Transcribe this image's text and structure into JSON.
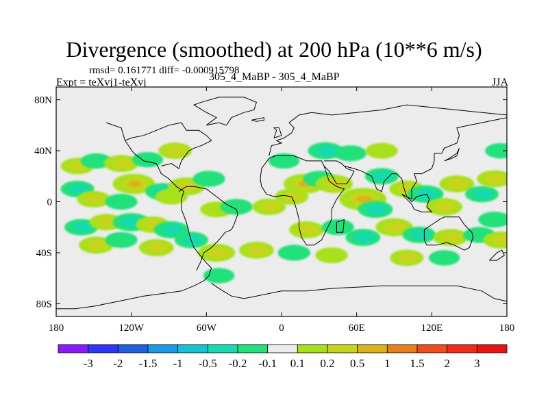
{
  "title": "Divergence (smoothed) at 200 hPa (10**6 m/s)",
  "stats_text": "rmsd= 0.161771  diff= -0.000915798",
  "expt_text": "Expt = teXvj1-teXvj",
  "case_text": "305_4_MaBP - 305_4_MaBP",
  "season": "JJA",
  "chart_data": {
    "type": "contour map",
    "title": "Divergence (smoothed) at 200 hPa (10**6 m/s)",
    "variable": "Divergence (smoothed)",
    "level": "200 hPa",
    "units": "10**6 m/s",
    "season": "JJA",
    "rmsd": 0.161771,
    "diff": -0.000915798,
    "xlim": [
      -180,
      180
    ],
    "ylim": [
      -90,
      90
    ],
    "xticks": [
      -180,
      -120,
      -60,
      0,
      60,
      120,
      180
    ],
    "xtick_labels": [
      "180",
      "120W",
      "60W",
      "0",
      "60E",
      "120E",
      "180"
    ],
    "yticks": [
      80,
      40,
      0,
      -40,
      -80
    ],
    "ytick_labels": [
      "80N",
      "40N",
      "0",
      "40S",
      "80S"
    ],
    "colorbar": {
      "levels": [
        -3,
        -2,
        -1.5,
        -1,
        -0.5,
        -0.2,
        -0.1,
        0.1,
        0.2,
        0.5,
        1,
        1.5,
        2,
        3
      ],
      "labels": [
        "-3",
        "-2",
        "-1.5",
        "-1",
        "-0.5",
        "-0.2",
        "-0.1",
        "0.1",
        "0.2",
        "0.5",
        "1",
        "1.5",
        "2",
        "3"
      ],
      "colors": [
        "#8c1aff",
        "#3333ff",
        "#1f5fe0",
        "#1a9be6",
        "#17c2d6",
        "#19d9b0",
        "#22e07a",
        "#ececec",
        "#a8e01c",
        "#c8d41c",
        "#dcb11a",
        "#e6801a",
        "#ef4d1a",
        "#f22a1a",
        "#e81414"
      ]
    },
    "field_blobs": [
      {
        "lon": -163,
        "lat": 28,
        "value": 0.25
      },
      {
        "lon": -148,
        "lat": 32,
        "value": -0.15
      },
      {
        "lon": -128,
        "lat": 30,
        "value": 0.3
      },
      {
        "lon": -107,
        "lat": 33,
        "value": -0.15
      },
      {
        "lon": -85,
        "lat": 40,
        "value": 0.25
      },
      {
        "lon": -163,
        "lat": 10,
        "value": -0.25
      },
      {
        "lon": -118,
        "lat": 14,
        "value": 0.6
      },
      {
        "lon": -95,
        "lat": 8,
        "value": -0.3
      },
      {
        "lon": -76,
        "lat": 12,
        "value": 0.4
      },
      {
        "lon": -150,
        "lat": 2,
        "value": 0.25
      },
      {
        "lon": -128,
        "lat": 0,
        "value": -0.2
      },
      {
        "lon": -88,
        "lat": 4,
        "value": 0.2
      },
      {
        "lon": -58,
        "lat": 18,
        "value": -0.2
      },
      {
        "lon": -52,
        "lat": -6,
        "value": 0.2
      },
      {
        "lon": -36,
        "lat": -4,
        "value": -0.2
      },
      {
        "lon": -160,
        "lat": -20,
        "value": -0.25
      },
      {
        "lon": -140,
        "lat": -16,
        "value": 0.25
      },
      {
        "lon": -120,
        "lat": -16,
        "value": -0.4
      },
      {
        "lon": -103,
        "lat": -18,
        "value": 0.25
      },
      {
        "lon": -88,
        "lat": -22,
        "value": -0.3
      },
      {
        "lon": -148,
        "lat": -34,
        "value": 0.3
      },
      {
        "lon": -128,
        "lat": -30,
        "value": -0.2
      },
      {
        "lon": -100,
        "lat": -36,
        "value": 0.3
      },
      {
        "lon": -72,
        "lat": -30,
        "value": -0.25
      },
      {
        "lon": -52,
        "lat": -40,
        "value": 0.4
      },
      {
        "lon": -20,
        "lat": -38,
        "value": 0.3
      },
      {
        "lon": -50,
        "lat": -58,
        "value": -0.15
      },
      {
        "lon": -10,
        "lat": -4,
        "value": 0.25
      },
      {
        "lon": 8,
        "lat": 4,
        "value": 0.25
      },
      {
        "lon": 2,
        "lat": 32,
        "value": -0.15
      },
      {
        "lon": 18,
        "lat": 14,
        "value": 0.55
      },
      {
        "lon": 30,
        "lat": 18,
        "value": -0.2
      },
      {
        "lon": 42,
        "lat": 14,
        "value": 0.4
      },
      {
        "lon": 55,
        "lat": 38,
        "value": -0.2
      },
      {
        "lon": 80,
        "lat": 20,
        "value": -0.25
      },
      {
        "lon": 80,
        "lat": 40,
        "value": 0.2
      },
      {
        "lon": 100,
        "lat": 10,
        "value": 0.3
      },
      {
        "lon": 115,
        "lat": 6,
        "value": -0.35
      },
      {
        "lon": 140,
        "lat": 14,
        "value": 0.3
      },
      {
        "lon": 160,
        "lat": 6,
        "value": -0.25
      },
      {
        "lon": 65,
        "lat": 2,
        "value": 0.8
      },
      {
        "lon": 75,
        "lat": -6,
        "value": -0.3
      },
      {
        "lon": 130,
        "lat": -4,
        "value": 0.35
      },
      {
        "lon": 170,
        "lat": 18,
        "value": 0.3
      },
      {
        "lon": 170,
        "lat": -14,
        "value": -0.2
      },
      {
        "lon": 20,
        "lat": -22,
        "value": 0.3
      },
      {
        "lon": 45,
        "lat": -20,
        "value": -0.2
      },
      {
        "lon": 65,
        "lat": -28,
        "value": -0.3
      },
      {
        "lon": 90,
        "lat": -20,
        "value": 0.4
      },
      {
        "lon": 110,
        "lat": -26,
        "value": -0.25
      },
      {
        "lon": 135,
        "lat": -28,
        "value": 0.3
      },
      {
        "lon": 158,
        "lat": -26,
        "value": -0.2
      },
      {
        "lon": 175,
        "lat": -30,
        "value": 0.3
      },
      {
        "lon": 100,
        "lat": -44,
        "value": 0.25
      },
      {
        "lon": 130,
        "lat": -44,
        "value": -0.15
      },
      {
        "lon": 40,
        "lat": -42,
        "value": 0.2
      },
      {
        "lon": 10,
        "lat": -40,
        "value": -0.2
      },
      {
        "lon": 175,
        "lat": 40,
        "value": -0.15
      },
      {
        "lon": 35,
        "lat": 40,
        "value": -0.3
      }
    ],
    "coastlines": [
      [
        [
          -180,
          -84
        ],
        [
          -165,
          -84
        ],
        [
          -150,
          -82
        ],
        [
          -130,
          -78
        ],
        [
          -110,
          -74
        ],
        [
          -95,
          -72
        ],
        [
          -80,
          -70
        ],
        [
          -70,
          -66
        ],
        [
          -62,
          -62
        ],
        [
          -58,
          -58
        ],
        [
          -56,
          -52
        ],
        [
          -60,
          -48
        ],
        [
          -65,
          -42
        ],
        [
          -70,
          -36
        ],
        [
          -73,
          -28
        ],
        [
          -76,
          -16
        ],
        [
          -80,
          -6
        ],
        [
          -80,
          2
        ],
        [
          -78,
          8
        ],
        [
          -84,
          12
        ],
        [
          -90,
          18
        ],
        [
          -96,
          22
        ],
        [
          -100,
          30
        ],
        [
          -110,
          32
        ],
        [
          -118,
          38
        ],
        [
          -125,
          48
        ],
        [
          -128,
          58
        ],
        [
          -140,
          62
        ]
      ],
      [
        [
          -82,
          8
        ],
        [
          -76,
          12
        ],
        [
          -70,
          12
        ],
        [
          -60,
          10
        ],
        [
          -52,
          4
        ],
        [
          -44,
          -2
        ],
        [
          -36,
          -6
        ],
        [
          -35,
          -10
        ],
        [
          -38,
          -18
        ],
        [
          -40,
          -22
        ],
        [
          -45,
          -24
        ],
        [
          -50,
          -30
        ],
        [
          -56,
          -36
        ],
        [
          -62,
          -40
        ],
        [
          -65,
          -48
        ],
        [
          -68,
          -54
        ]
      ],
      [
        [
          -56,
          -64
        ],
        [
          -50,
          -68
        ],
        [
          -40,
          -74
        ],
        [
          -30,
          -76
        ],
        [
          -20,
          -74
        ],
        [
          -10,
          -72
        ],
        [
          0,
          -70
        ],
        [
          20,
          -70
        ],
        [
          40,
          -68
        ],
        [
          60,
          -67
        ],
        [
          80,
          -66
        ],
        [
          100,
          -66
        ],
        [
          120,
          -66
        ],
        [
          140,
          -66
        ],
        [
          160,
          -70
        ],
        [
          170,
          -76
        ],
        [
          180,
          -78
        ]
      ],
      [
        [
          -180,
          -90
        ],
        [
          180,
          -90
        ]
      ],
      [
        [
          -5,
          36
        ],
        [
          -10,
          34
        ],
        [
          -16,
          26
        ],
        [
          -17,
          18
        ],
        [
          -16,
          12
        ],
        [
          -12,
          6
        ],
        [
          -6,
          4
        ],
        [
          2,
          5
        ],
        [
          8,
          4
        ],
        [
          10,
          0
        ],
        [
          12,
          -6
        ],
        [
          14,
          -14
        ],
        [
          14,
          -20
        ],
        [
          16,
          -28
        ],
        [
          20,
          -34
        ],
        [
          26,
          -34
        ],
        [
          32,
          -30
        ],
        [
          36,
          -22
        ],
        [
          40,
          -14
        ],
        [
          40,
          -6
        ],
        [
          44,
          2
        ],
        [
          50,
          10
        ],
        [
          44,
          12
        ],
        [
          38,
          16
        ],
        [
          34,
          28
        ],
        [
          32,
          32
        ],
        [
          20,
          32
        ],
        [
          10,
          36
        ],
        [
          0,
          36
        ],
        [
          -5,
          36
        ]
      ],
      [
        [
          44,
          -16
        ],
        [
          50,
          -14
        ],
        [
          49,
          -24
        ],
        [
          44,
          -24
        ],
        [
          44,
          -16
        ]
      ],
      [
        [
          34,
          28
        ],
        [
          38,
          24
        ],
        [
          44,
          14
        ],
        [
          52,
          14
        ],
        [
          56,
          20
        ],
        [
          58,
          24
        ],
        [
          52,
          26
        ],
        [
          48,
          30
        ],
        [
          44,
          32
        ],
        [
          34,
          32
        ]
      ],
      [
        [
          50,
          28
        ],
        [
          58,
          26
        ],
        [
          64,
          24
        ],
        [
          72,
          20
        ],
        [
          76,
          10
        ],
        [
          80,
          8
        ],
        [
          82,
          16
        ],
        [
          88,
          22
        ],
        [
          92,
          22
        ],
        [
          96,
          18
        ],
        [
          98,
          10
        ],
        [
          100,
          4
        ],
        [
          104,
          2
        ],
        [
          104,
          10
        ],
        [
          108,
          16
        ],
        [
          106,
          22
        ],
        [
          112,
          22
        ],
        [
          120,
          26
        ],
        [
          122,
          32
        ],
        [
          122,
          38
        ],
        [
          128,
          38
        ],
        [
          130,
          42
        ],
        [
          140,
          46
        ],
        [
          142,
          52
        ],
        [
          140,
          58
        ],
        [
          150,
          60
        ],
        [
          160,
          62
        ],
        [
          170,
          64
        ],
        [
          180,
          66
        ]
      ],
      [
        [
          -10,
          36
        ],
        [
          -8,
          44
        ],
        [
          0,
          46
        ],
        [
          -4,
          48
        ],
        [
          2,
          50
        ],
        [
          8,
          54
        ],
        [
          10,
          58
        ],
        [
          6,
          62
        ],
        [
          14,
          68
        ],
        [
          24,
          70
        ],
        [
          40,
          68
        ],
        [
          60,
          70
        ],
        [
          80,
          72
        ],
        [
          100,
          76
        ],
        [
          120,
          74
        ],
        [
          140,
          72
        ],
        [
          160,
          70
        ],
        [
          180,
          68
        ]
      ],
      [
        [
          114,
          -22
        ],
        [
          114,
          -30
        ],
        [
          116,
          -34
        ],
        [
          124,
          -34
        ],
        [
          132,
          -32
        ],
        [
          138,
          -34
        ],
        [
          146,
          -38
        ],
        [
          150,
          -36
        ],
        [
          153,
          -28
        ],
        [
          152,
          -24
        ],
        [
          146,
          -18
        ],
        [
          142,
          -12
        ],
        [
          136,
          -12
        ],
        [
          130,
          -12
        ],
        [
          126,
          -14
        ],
        [
          120,
          -18
        ],
        [
          114,
          -22
        ]
      ],
      [
        [
          96,
          6
        ],
        [
          100,
          2
        ],
        [
          104,
          -2
        ],
        [
          106,
          -6
        ],
        [
          112,
          -8
        ],
        [
          120,
          -8
        ],
        [
          116,
          -4
        ],
        [
          118,
          2
        ],
        [
          116,
          6
        ],
        [
          108,
          4
        ],
        [
          104,
          0
        ],
        [
          100,
          4
        ],
        [
          96,
          6
        ]
      ],
      [
        [
          130,
          32
        ],
        [
          134,
          34
        ],
        [
          140,
          38
        ],
        [
          142,
          42
        ],
        [
          140,
          36
        ],
        [
          136,
          34
        ],
        [
          130,
          32
        ]
      ],
      [
        [
          166,
          -46
        ],
        [
          172,
          -40
        ],
        [
          176,
          -38
        ],
        [
          178,
          -42
        ],
        [
          172,
          -46
        ],
        [
          166,
          -46
        ]
      ],
      [
        [
          -125,
          48
        ],
        [
          -120,
          50
        ],
        [
          -110,
          52
        ],
        [
          -100,
          56
        ],
        [
          -90,
          60
        ],
        [
          -80,
          62
        ],
        [
          -76,
          56
        ],
        [
          -66,
          56
        ],
        [
          -60,
          52
        ],
        [
          -56,
          48
        ],
        [
          -64,
          44
        ],
        [
          -70,
          42
        ],
        [
          -74,
          40
        ],
        [
          -80,
          32
        ],
        [
          -82,
          26
        ],
        [
          -88,
          30
        ],
        [
          -96,
          28
        ]
      ],
      [
        [
          -60,
          60
        ],
        [
          -50,
          62
        ],
        [
          -44,
          60
        ],
        [
          -40,
          66
        ],
        [
          -30,
          70
        ],
        [
          -22,
          72
        ],
        [
          -20,
          78
        ],
        [
          -30,
          82
        ],
        [
          -50,
          82
        ],
        [
          -64,
          78
        ],
        [
          -70,
          76
        ],
        [
          -60,
          70
        ],
        [
          -52,
          66
        ],
        [
          -60,
          60
        ]
      ],
      [
        [
          -24,
          64
        ],
        [
          -14,
          66
        ],
        [
          -14,
          64
        ],
        [
          -20,
          63
        ],
        [
          -24,
          64
        ]
      ],
      [
        [
          -6,
          50
        ],
        [
          -4,
          56
        ],
        [
          -6,
          58
        ],
        [
          -2,
          58
        ],
        [
          0,
          52
        ],
        [
          -6,
          50
        ]
      ]
    ]
  }
}
